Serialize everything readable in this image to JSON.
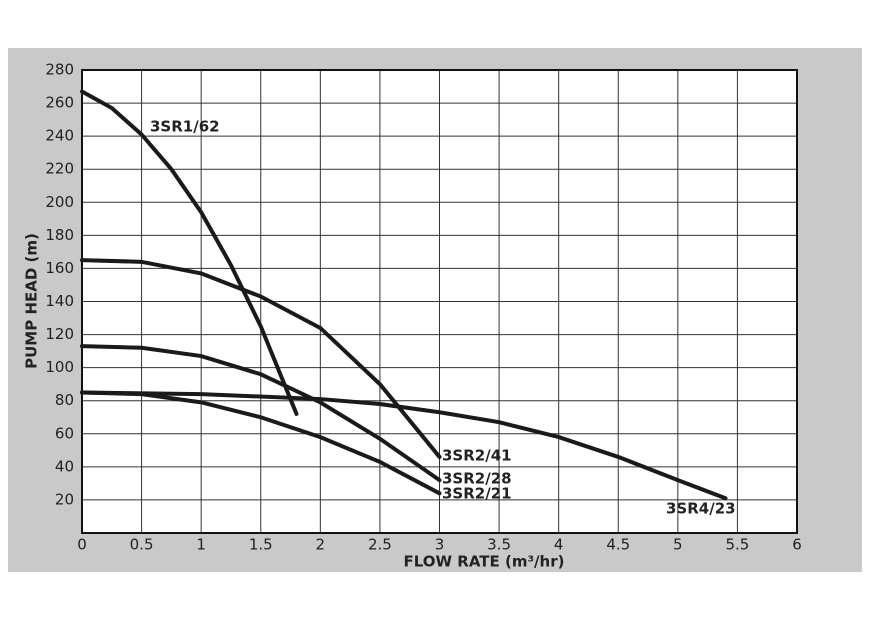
{
  "chart_data": {
    "type": "line",
    "xlabel": "FLOW RATE (m³/hr)",
    "ylabel": "PUMP HEAD (m)",
    "xlim": [
      0,
      6
    ],
    "ylim": [
      0,
      280
    ],
    "xticks": [
      0,
      0.5,
      1,
      1.5,
      2,
      2.5,
      3,
      3.5,
      4,
      4.5,
      5,
      5.5,
      6
    ],
    "yticks": [
      20,
      40,
      60,
      80,
      100,
      120,
      140,
      160,
      180,
      200,
      220,
      240,
      260,
      280
    ],
    "grid": true,
    "series": [
      {
        "name": "3SR1/62",
        "color": "#1a1a1a",
        "x": [
          0,
          0.25,
          0.5,
          0.75,
          1,
          1.25,
          1.5,
          1.8
        ],
        "values": [
          267,
          257,
          241,
          220,
          194,
          162,
          125,
          72
        ]
      },
      {
        "name": "3SR2/41",
        "color": "#1a1a1a",
        "x": [
          0,
          0.5,
          1,
          1.5,
          2,
          2.5,
          3
        ],
        "values": [
          165,
          164,
          157,
          143,
          124,
          90,
          46
        ]
      },
      {
        "name": "3SR2/28",
        "color": "#1a1a1a",
        "x": [
          0,
          0.5,
          1,
          1.5,
          2,
          2.5,
          3
        ],
        "values": [
          113,
          112,
          107,
          96,
          79,
          57,
          32
        ]
      },
      {
        "name": "3SR2/21",
        "color": "#1a1a1a",
        "x": [
          0,
          0.5,
          1,
          1.5,
          2,
          2.5,
          3
        ],
        "values": [
          85,
          84,
          79,
          70,
          58,
          43,
          24
        ]
      },
      {
        "name": "3SR4/23",
        "color": "#1a1a1a",
        "x": [
          0,
          1,
          2,
          2.5,
          3,
          3.5,
          4,
          4.5,
          5,
          5.4
        ],
        "values": [
          85,
          84,
          81,
          78,
          73,
          67,
          58,
          46,
          32,
          21
        ]
      }
    ]
  }
}
